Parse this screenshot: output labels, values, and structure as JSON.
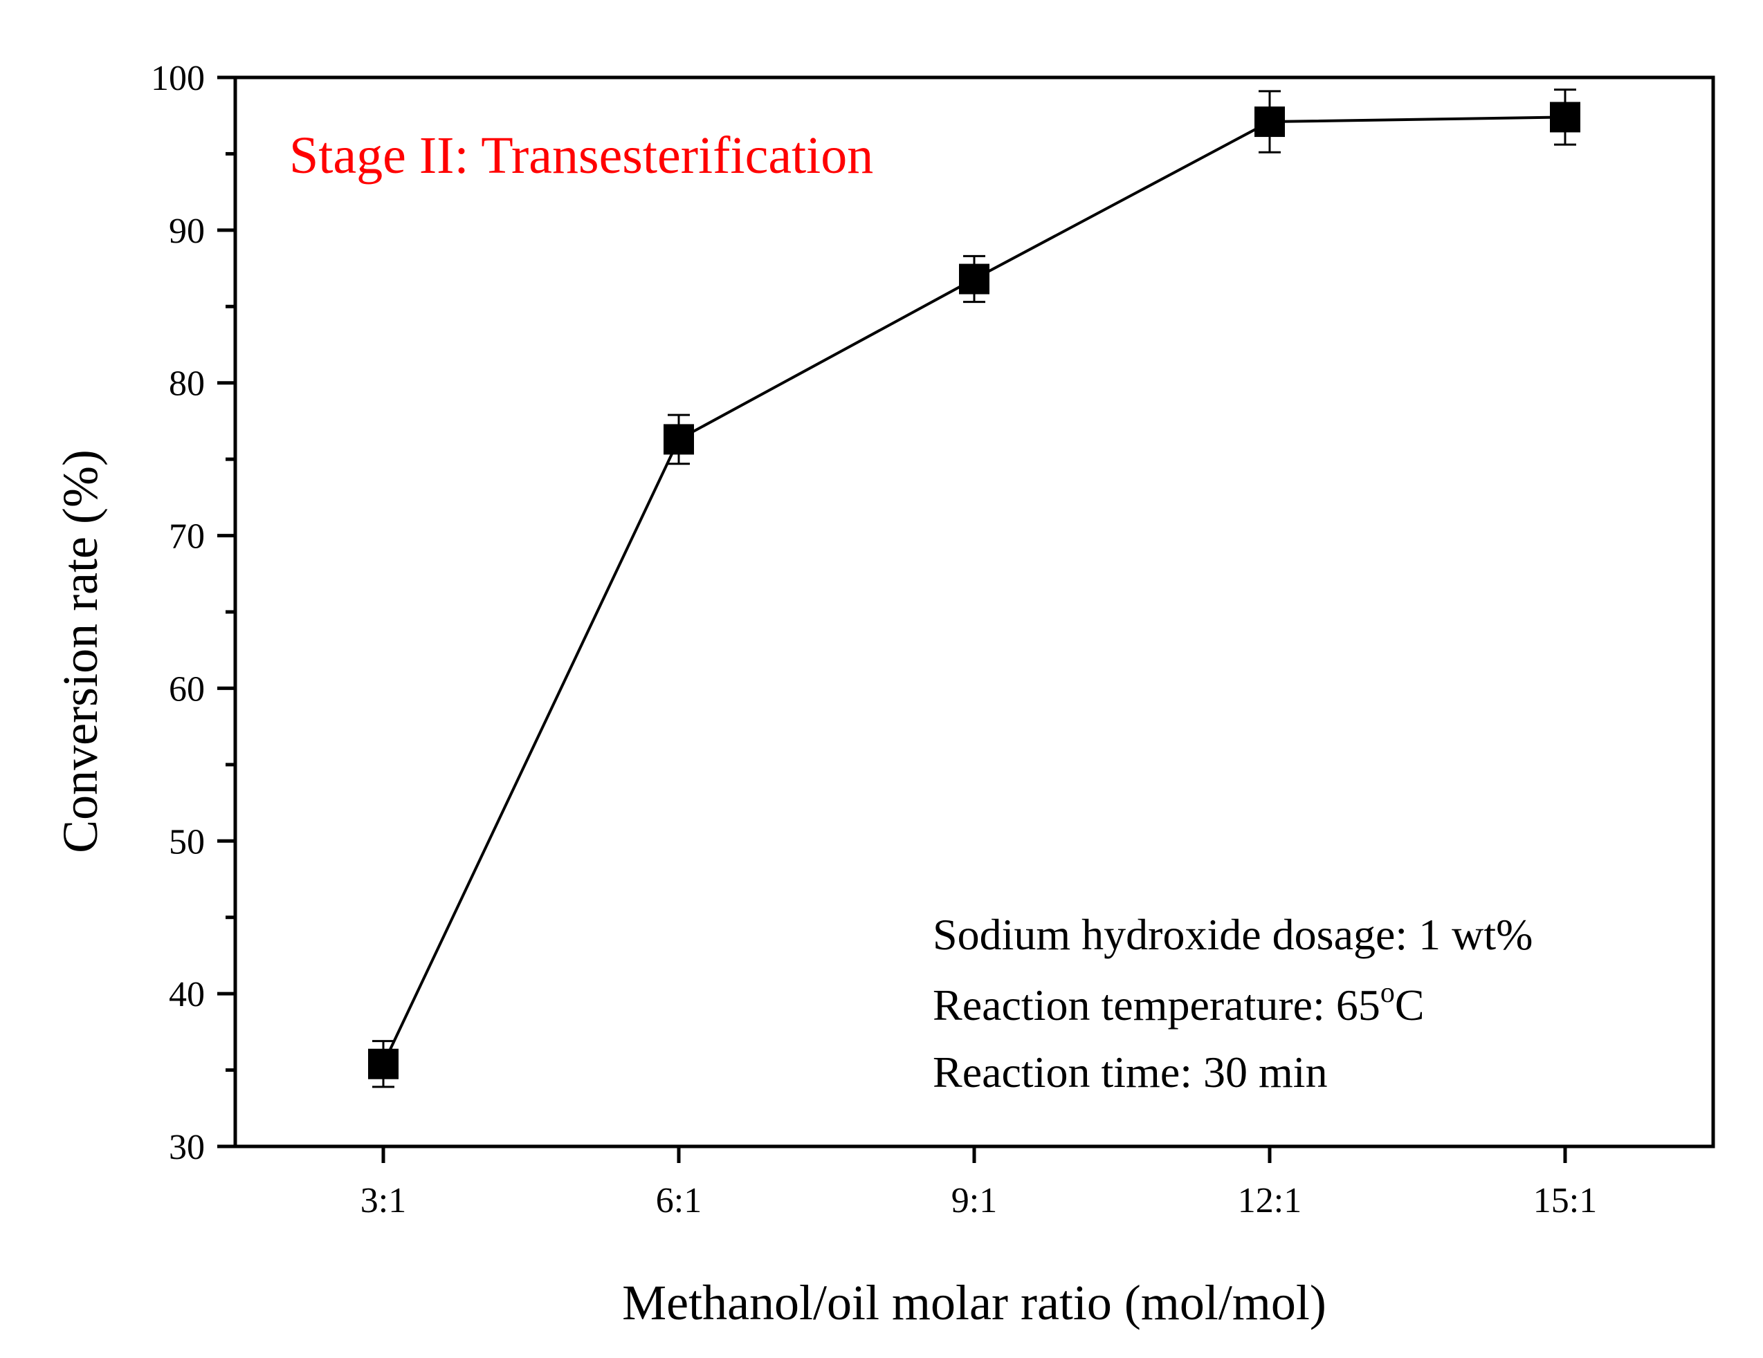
{
  "chart_data": {
    "type": "line",
    "title": "",
    "annotation_title": "Stage II: Transesterification",
    "annotation_title_color": "#ff0000",
    "xlabel": "Methanol/oil molar ratio (mol/mol)",
    "ylabel": "Conversion rate (%)",
    "categories": [
      "3:1",
      "6:1",
      "9:1",
      "12:1",
      "15:1"
    ],
    "series": [
      {
        "name": "Conversion rate",
        "values": [
          35.4,
          76.3,
          86.8,
          97.1,
          97.4
        ],
        "errors": [
          1.5,
          1.6,
          1.5,
          2.0,
          1.8
        ],
        "marker": "square",
        "color": "#000000"
      }
    ],
    "ylim": [
      30,
      100
    ],
    "yticks": [
      30,
      40,
      50,
      60,
      70,
      80,
      90,
      100
    ],
    "yticks_minor": [
      35,
      45,
      55,
      65,
      75,
      85,
      95
    ],
    "grid": false,
    "conditions": {
      "line1": "Sodium hydroxide dosage: 1 wt%",
      "line2_prefix": "Reaction temperature: 65",
      "line2_sup": "o",
      "line2_suffix": "C",
      "line3": "Reaction time: 30 min"
    }
  }
}
